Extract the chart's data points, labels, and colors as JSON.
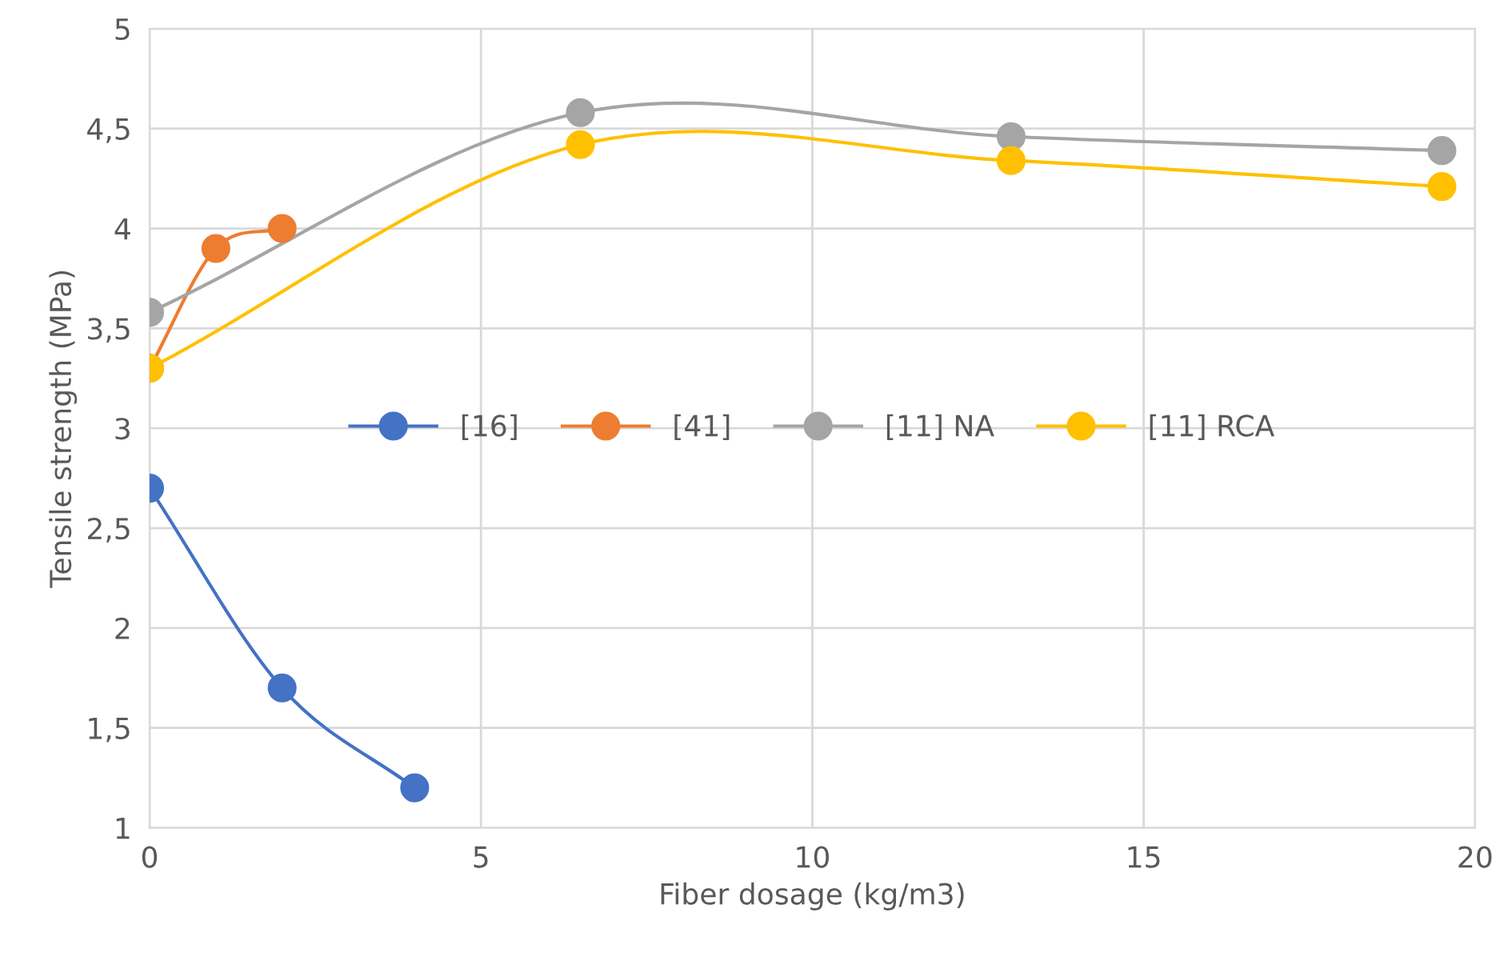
{
  "chart_data": {
    "type": "line",
    "xlabel": "Fiber dosage (kg/m3)",
    "ylabel": "Tensile strength (MPa)",
    "xlim": [
      0,
      20
    ],
    "xticks": [
      0,
      5,
      10,
      15,
      20
    ],
    "ylim": [
      1,
      5
    ],
    "yticks": [
      1,
      {
        "value": 1.5,
        "label": "1,5"
      },
      2,
      {
        "value": 2.5,
        "label": "2,5"
      },
      3,
      {
        "value": 3.5,
        "label": "3,5"
      },
      4,
      {
        "value": 4.5,
        "label": "4,5"
      },
      5
    ],
    "grid": true,
    "legend": "center",
    "marker": "circle",
    "line_style": "solid",
    "series": [
      {
        "name": "[16]",
        "color": "#4472c4",
        "x": [
          0,
          2,
          4
        ],
        "values": [
          2.7,
          1.7,
          1.2
        ]
      },
      {
        "name": "[41]",
        "color": "#ed7d31",
        "x": [
          0,
          1,
          2
        ],
        "values": [
          3.3,
          3.9,
          4.0
        ]
      },
      {
        "name": "[11] NA",
        "color": "#a5a5a5",
        "x": [
          0,
          6.5,
          13,
          19.5
        ],
        "values": [
          3.58,
          4.58,
          4.46,
          4.39
        ]
      },
      {
        "name": "[11] RCA",
        "color": "#ffc000",
        "x": [
          0,
          6.5,
          13,
          19.5
        ],
        "values": [
          3.3,
          4.42,
          4.34,
          4.21
        ]
      }
    ]
  }
}
